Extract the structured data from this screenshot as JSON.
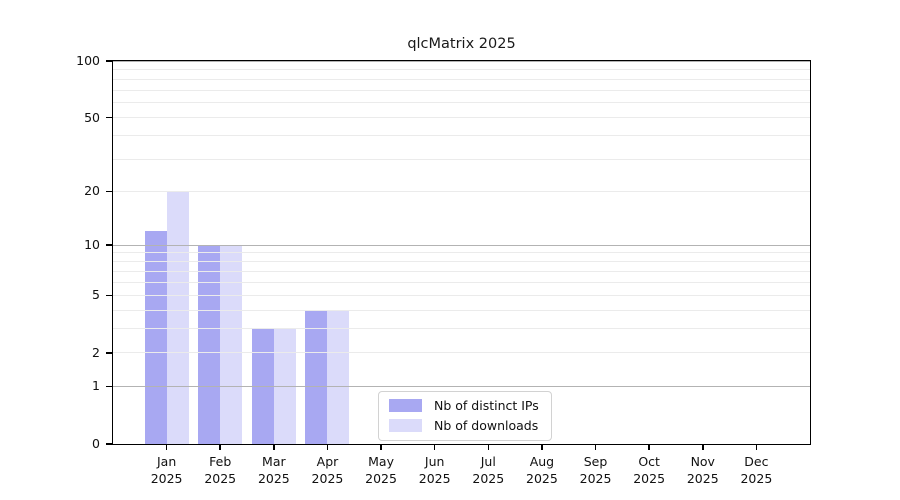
{
  "title": "qlcMatrix 2025",
  "chart_data": {
    "type": "bar",
    "title": "qlcMatrix 2025",
    "categories": [
      "Jan",
      "Feb",
      "Mar",
      "Apr",
      "May",
      "Jun",
      "Jul",
      "Aug",
      "Sep",
      "Oct",
      "Nov",
      "Dec"
    ],
    "year": "2025",
    "series": [
      {
        "name": "Nb of distinct IPs",
        "color": "#a8a8f2",
        "values": [
          12,
          10,
          3,
          4,
          0,
          0,
          0,
          0,
          0,
          0,
          0,
          0
        ]
      },
      {
        "name": "Nb of downloads",
        "color": "#dbdbfa",
        "values": [
          20,
          10,
          3,
          4,
          0,
          0,
          0,
          0,
          0,
          0,
          0,
          0
        ]
      }
    ],
    "y_axis": {
      "scale": "log1p",
      "max": 100,
      "tick_labels": [
        0,
        1,
        2,
        5,
        10,
        20,
        50,
        100
      ],
      "major_gridlines": [
        1,
        10,
        100
      ],
      "minor_gridlines": [
        2,
        3,
        4,
        5,
        6,
        7,
        8,
        9,
        20,
        30,
        40,
        50,
        60,
        70,
        80,
        90
      ]
    },
    "grid": true,
    "legend_position": "inside-bottom-center",
    "colors": {
      "major_gridline": "#b3b3b3",
      "minor_gridline": "#ebebeb",
      "axis_frame": "#000000",
      "background": "#ffffff"
    }
  }
}
